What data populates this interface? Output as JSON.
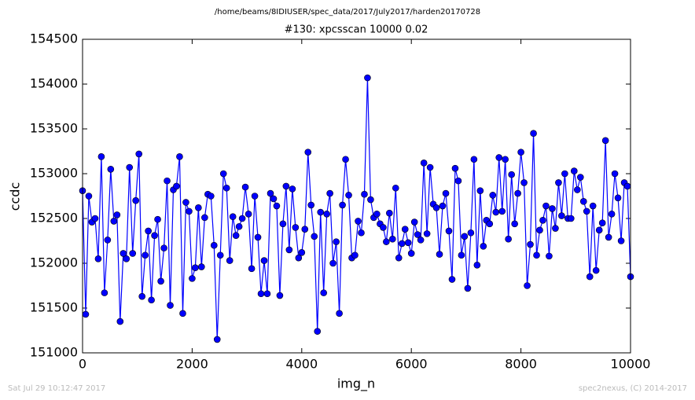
{
  "chart_data": {
    "type": "line",
    "suptitle": "/home/beams/8IDIUSER/spec_data/2017/July2017/harden20170728",
    "title": "#130: xpcsscan 10000 0.02",
    "xlabel": "img_n",
    "ylabel": "ccdc",
    "footer_left": "Sat Jul 29 10:12:47 2017",
    "footer_right": "spec2nexus, (C) 2014-2017",
    "color": "#0000ff",
    "marker_color": "#0000ff",
    "xlim": [
      0,
      10000
    ],
    "ylim": [
      151000,
      154500
    ],
    "xticks": [
      0,
      2000,
      4000,
      6000,
      8000,
      10000
    ],
    "yticks": [
      151000,
      151500,
      152000,
      152500,
      153000,
      153500,
      154000,
      154500
    ],
    "x": [
      0,
      57,
      114,
      171,
      229,
      286,
      343,
      400,
      457,
      514,
      571,
      629,
      686,
      743,
      800,
      857,
      914,
      971,
      1029,
      1086,
      1143,
      1200,
      1257,
      1314,
      1371,
      1429,
      1486,
      1543,
      1600,
      1657,
      1714,
      1771,
      1829,
      1886,
      1943,
      2000,
      2057,
      2114,
      2171,
      2229,
      2286,
      2343,
      2400,
      2457,
      2514,
      2571,
      2629,
      2686,
      2743,
      2800,
      2857,
      2914,
      2971,
      3029,
      3086,
      3143,
      3200,
      3257,
      3314,
      3371,
      3429,
      3486,
      3543,
      3600,
      3657,
      3714,
      3771,
      3829,
      3886,
      3943,
      4000,
      4057,
      4114,
      4171,
      4229,
      4286,
      4343,
      4400,
      4457,
      4514,
      4571,
      4629,
      4686,
      4743,
      4800,
      4857,
      4914,
      4971,
      5029,
      5086,
      5143,
      5200,
      5257,
      5314,
      5371,
      5429,
      5486,
      5543,
      5600,
      5657,
      5714,
      5771,
      5829,
      5886,
      5943,
      6000,
      6057,
      6114,
      6171,
      6229,
      6286,
      6343,
      6400,
      6457,
      6514,
      6571,
      6629,
      6686,
      6743,
      6800,
      6857,
      6914,
      6971,
      7029,
      7086,
      7143,
      7200,
      7257,
      7314,
      7371,
      7429,
      7486,
      7543,
      7600,
      7657,
      7714,
      7771,
      7829,
      7886,
      7943,
      8000,
      8057,
      8114,
      8171,
      8229,
      8286,
      8343,
      8400,
      8457,
      8514,
      8571,
      8629,
      8686,
      8743,
      8800,
      8857,
      8914,
      8971,
      9029,
      9086,
      9143,
      9200,
      9257,
      9314,
      9371,
      9429,
      9486,
      9543,
      9600,
      9657,
      9714,
      9771,
      9829,
      9886,
      9943,
      10000
    ],
    "values": [
      152810,
      151430,
      152750,
      152460,
      152500,
      152050,
      153190,
      151670,
      152260,
      153050,
      152470,
      152540,
      151350,
      152110,
      152050,
      153070,
      152110,
      152700,
      153220,
      151630,
      152090,
      152360,
      151590,
      152310,
      152490,
      151800,
      152170,
      152920,
      151530,
      152820,
      152860,
      153190,
      151440,
      152680,
      152580,
      151830,
      151950,
      152620,
      151960,
      152510,
      152770,
      152750,
      152200,
      151150,
      152090,
      153000,
      152840,
      152030,
      152520,
      152310,
      152410,
      152500,
      152850,
      152550,
      151940,
      152750,
      152290,
      151660,
      152030,
      151660,
      152780,
      152720,
      152640,
      151640,
      152440,
      152860,
      152150,
      152830,
      152400,
      152060,
      152120,
      152380,
      153240,
      152650,
      152300,
      151240,
      152570,
      151670,
      152550,
      152780,
      152000,
      152240,
      151440,
      152650,
      153160,
      152760,
      152060,
      152090,
      152470,
      152340,
      152770,
      154070,
      152710,
      152510,
      152550,
      152440,
      152400,
      152240,
      152560,
      152270,
      152840,
      152060,
      152220,
      152380,
      152230,
      152110,
      152460,
      152320,
      152260,
      153120,
      152330,
      153070,
      152660,
      152620,
      152100,
      152640,
      152780,
      152360,
      151820,
      153060,
      152920,
      152090,
      152300,
      151720,
      152340,
      153160,
      151980,
      152810,
      152190,
      152480,
      152440,
      152760,
      152570,
      153180,
      152580,
      153160,
      152270,
      152990,
      152440,
      152780,
      153240,
      152900,
      151750,
      152210,
      153450,
      152090,
      152370,
      152480,
      152640,
      152080,
      152610,
      152390,
      152900,
      152530,
      153000,
      152500,
      152500,
      153030,
      152820,
      152960,
      152690,
      152580,
      151850,
      152640,
      151920,
      152370,
      152450,
      153370,
      152290,
      152550,
      153000,
      152730,
      152250,
      152900,
      152860,
      151850
    ]
  }
}
